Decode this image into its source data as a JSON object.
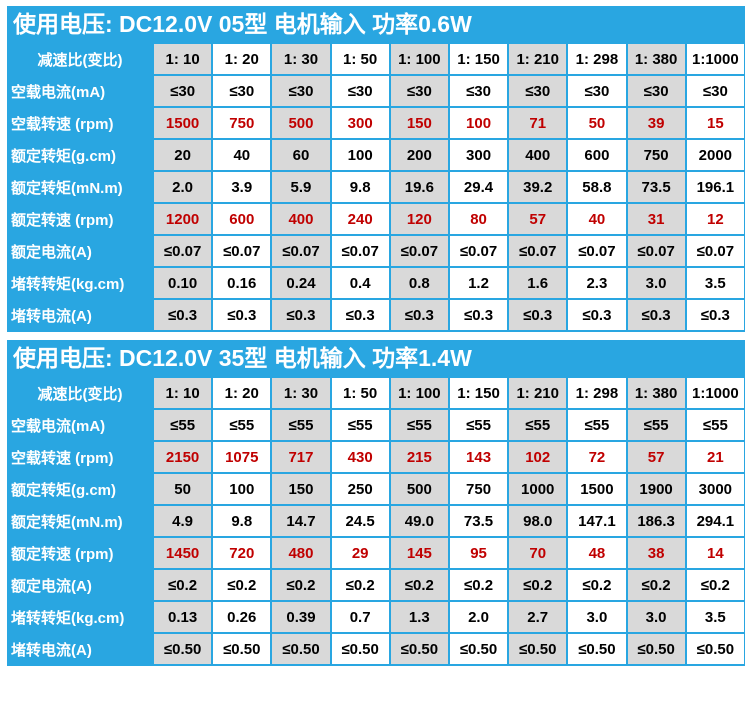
{
  "sections": [
    {
      "title": "使用电压: DC12.0V  05型 电机输入 功率0.6W",
      "rows": [
        {
          "label": "减速比(变比)",
          "header": true,
          "red": false,
          "values": [
            "1: 10",
            "1: 20",
            "1: 30",
            "1: 50",
            "1: 100",
            "1: 150",
            "1: 210",
            "1: 298",
            "1: 380",
            "1:1000"
          ]
        },
        {
          "label": "空载电流(mA)",
          "red": false,
          "values": [
            "≤30",
            "≤30",
            "≤30",
            "≤30",
            "≤30",
            "≤30",
            "≤30",
            "≤30",
            "≤30",
            "≤30"
          ]
        },
        {
          "label": "空载转速 (rpm)",
          "red": true,
          "values": [
            "1500",
            "750",
            "500",
            "300",
            "150",
            "100",
            "71",
            "50",
            "39",
            "15"
          ]
        },
        {
          "label": "额定转矩(g.cm)",
          "red": false,
          "values": [
            "20",
            "40",
            "60",
            "100",
            "200",
            "300",
            "400",
            "600",
            "750",
            "2000"
          ]
        },
        {
          "label": "额定转矩(mN.m)",
          "red": false,
          "values": [
            "2.0",
            "3.9",
            "5.9",
            "9.8",
            "19.6",
            "29.4",
            "39.2",
            "58.8",
            "73.5",
            "196.1"
          ]
        },
        {
          "label": "额定转速 (rpm)",
          "red": true,
          "values": [
            "1200",
            "600",
            "400",
            "240",
            "120",
            "80",
            "57",
            "40",
            "31",
            "12"
          ]
        },
        {
          "label": "额定电流(A)",
          "red": false,
          "values": [
            "≤0.07",
            "≤0.07",
            "≤0.07",
            "≤0.07",
            "≤0.07",
            "≤0.07",
            "≤0.07",
            "≤0.07",
            "≤0.07",
            "≤0.07"
          ]
        },
        {
          "label": "堵转转矩(kg.cm)",
          "red": false,
          "values": [
            "0.10",
            "0.16",
            "0.24",
            "0.4",
            "0.8",
            "1.2",
            "1.6",
            "2.3",
            "3.0",
            "3.5"
          ]
        },
        {
          "label": "堵转电流(A)",
          "red": false,
          "values": [
            "≤0.3",
            "≤0.3",
            "≤0.3",
            "≤0.3",
            "≤0.3",
            "≤0.3",
            "≤0.3",
            "≤0.3",
            "≤0.3",
            "≤0.3"
          ]
        }
      ]
    },
    {
      "title": "使用电压: DC12.0V  35型 电机输入 功率1.4W",
      "rows": [
        {
          "label": "减速比(变比)",
          "header": true,
          "red": false,
          "values": [
            "1: 10",
            "1: 20",
            "1: 30",
            "1: 50",
            "1: 100",
            "1: 150",
            "1: 210",
            "1: 298",
            "1: 380",
            "1:1000"
          ]
        },
        {
          "label": "空载电流(mA)",
          "red": false,
          "values": [
            "≤55",
            "≤55",
            "≤55",
            "≤55",
            "≤55",
            "≤55",
            "≤55",
            "≤55",
            "≤55",
            "≤55"
          ]
        },
        {
          "label": "空载转速 (rpm)",
          "red": true,
          "values": [
            "2150",
            "1075",
            "717",
            "430",
            "215",
            "143",
            "102",
            "72",
            "57",
            "21"
          ]
        },
        {
          "label": "额定转矩(g.cm)",
          "red": false,
          "values": [
            "50",
            "100",
            "150",
            "250",
            "500",
            "750",
            "1000",
            "1500",
            "1900",
            "3000"
          ]
        },
        {
          "label": "额定转矩(mN.m)",
          "red": false,
          "values": [
            "4.9",
            "9.8",
            "14.7",
            "24.5",
            "49.0",
            "73.5",
            "98.0",
            "147.1",
            "186.3",
            "294.1"
          ]
        },
        {
          "label": "额定转速 (rpm)",
          "red": true,
          "values": [
            "1450",
            "720",
            "480",
            "29",
            "145",
            "95",
            "70",
            "48",
            "38",
            "14"
          ]
        },
        {
          "label": "额定电流(A)",
          "red": false,
          "values": [
            "≤0.2",
            "≤0.2",
            "≤0.2",
            "≤0.2",
            "≤0.2",
            "≤0.2",
            "≤0.2",
            "≤0.2",
            "≤0.2",
            "≤0.2"
          ]
        },
        {
          "label": "堵转转矩(kg.cm)",
          "red": false,
          "values": [
            "0.13",
            "0.26",
            "0.39",
            "0.7",
            "1.3",
            "2.0",
            "2.7",
            "3.0",
            "3.0",
            "3.5"
          ]
        },
        {
          "label": "堵转电流(A)",
          "red": false,
          "values": [
            "≤0.50",
            "≤0.50",
            "≤0.50",
            "≤0.50",
            "≤0.50",
            "≤0.50",
            "≤0.50",
            "≤0.50",
            "≤0.50",
            "≤0.50"
          ]
        }
      ]
    }
  ],
  "colors": {
    "section_bg": "#29a6e1",
    "cell_bg": "#ffffff",
    "cell_alt_bg": "#d9d9d9",
    "highlight_text": "#c00000"
  }
}
